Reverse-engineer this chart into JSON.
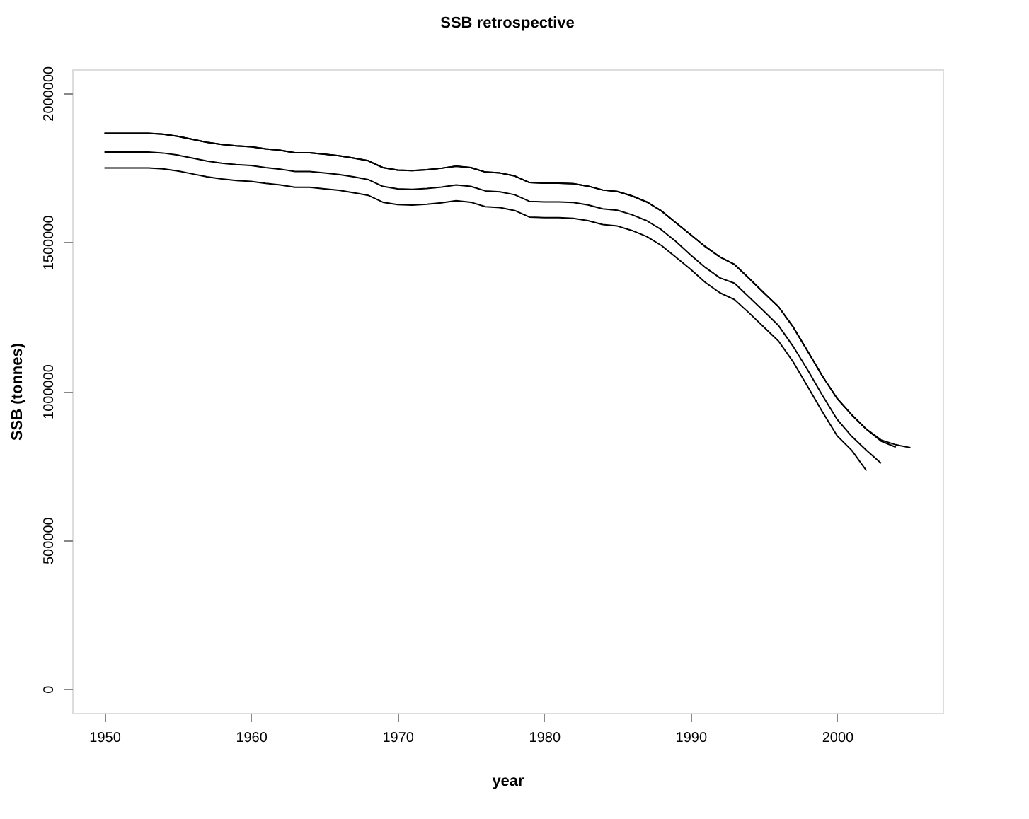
{
  "chart_data": {
    "type": "line",
    "title": "SSB retrospective",
    "xlabel": "year",
    "ylabel": "SSB (tonnes)",
    "xlim": [
      1947.8,
      2007.2
    ],
    "ylim": [
      -80000,
      2080000
    ],
    "xticks": [
      1950,
      1960,
      1970,
      1980,
      1990,
      2000
    ],
    "yticks": [
      0,
      500000,
      1000000,
      1500000,
      2000000
    ],
    "grid": false,
    "legend": false,
    "marker": "none",
    "line_style": "solid",
    "series": [
      {
        "color": "#000000",
        "x": [
          1950,
          1951,
          1952,
          1953,
          1954,
          1955,
          1956,
          1957,
          1958,
          1959,
          1960,
          1961,
          1962,
          1963,
          1964,
          1965,
          1966,
          1967,
          1968,
          1969,
          1970,
          1971,
          1972,
          1973,
          1974,
          1975,
          1976,
          1977,
          1978,
          1979,
          1980,
          1981,
          1982,
          1983,
          1984,
          1985,
          1986,
          1987,
          1988,
          1989,
          1990,
          1991,
          1992,
          1993,
          1994,
          1995,
          1996,
          1997,
          1998,
          1999,
          2000,
          2001,
          2002,
          2003,
          2004,
          2005
        ],
        "values": [
          1865000,
          1865000,
          1865000,
          1865000,
          1862000,
          1855000,
          1845000,
          1835000,
          1828000,
          1823000,
          1820000,
          1813000,
          1808000,
          1800000,
          1800000,
          1795000,
          1790000,
          1782000,
          1773000,
          1750000,
          1742000,
          1740000,
          1743000,
          1748000,
          1755000,
          1750000,
          1735000,
          1732000,
          1722000,
          1700000,
          1698000,
          1698000,
          1696000,
          1688000,
          1675000,
          1670000,
          1655000,
          1635000,
          1605000,
          1565000,
          1525000,
          1485000,
          1450000,
          1425000,
          1378000,
          1330000,
          1283000,
          1215000,
          1133000,
          1050000,
          975000,
          920000,
          872000,
          836000,
          820000,
          810000
        ]
      },
      {
        "color": "#000000",
        "x": [
          1950,
          1951,
          1952,
          1953,
          1954,
          1955,
          1956,
          1957,
          1958,
          1959,
          1960,
          1961,
          1962,
          1963,
          1964,
          1965,
          1966,
          1967,
          1968,
          1969,
          1970,
          1971,
          1972,
          1973,
          1974,
          1975,
          1976,
          1977,
          1978,
          1979,
          1980,
          1981,
          1982,
          1983,
          1984,
          1985,
          1986,
          1987,
          1988,
          1989,
          1990,
          1991,
          1992,
          1993,
          1994,
          1995,
          1996,
          1997,
          1998,
          1999,
          2000,
          2001,
          2002,
          2003,
          2004
        ],
        "values": [
          1865000,
          1865000,
          1865000,
          1865000,
          1862000,
          1855000,
          1845000,
          1835000,
          1828000,
          1823000,
          1820000,
          1813000,
          1808000,
          1800000,
          1800000,
          1795000,
          1790000,
          1782000,
          1773000,
          1750000,
          1742000,
          1740000,
          1743000,
          1748000,
          1755000,
          1750000,
          1735000,
          1732000,
          1722000,
          1700000,
          1698000,
          1698000,
          1696000,
          1688000,
          1675000,
          1670000,
          1655000,
          1635000,
          1605000,
          1565000,
          1525000,
          1485000,
          1450000,
          1425000,
          1378000,
          1330000,
          1283000,
          1215000,
          1133000,
          1050000,
          975000,
          920000,
          872000,
          832000,
          812000
        ]
      },
      {
        "color": "#000000",
        "x": [
          1950,
          1951,
          1952,
          1953,
          1954,
          1955,
          1956,
          1957,
          1958,
          1959,
          1960,
          1961,
          1962,
          1963,
          1964,
          1965,
          1966,
          1967,
          1968,
          1969,
          1970,
          1971,
          1972,
          1973,
          1974,
          1975,
          1976,
          1977,
          1978,
          1979,
          1980,
          1981,
          1982,
          1983,
          1984,
          1985,
          1986,
          1987,
          1988,
          1989,
          1990,
          1991,
          1992,
          1993,
          1994,
          1995,
          1996,
          1997,
          1998,
          1999,
          2000,
          2001,
          2002,
          2003
        ],
        "values": [
          1802000,
          1802000,
          1802000,
          1802000,
          1799000,
          1792000,
          1782000,
          1772000,
          1765000,
          1760000,
          1757000,
          1750000,
          1745000,
          1737000,
          1737000,
          1732000,
          1727000,
          1719000,
          1710000,
          1687000,
          1679000,
          1677000,
          1680000,
          1685000,
          1692000,
          1687000,
          1672000,
          1669000,
          1659000,
          1637000,
          1635000,
          1635000,
          1633000,
          1625000,
          1612000,
          1607000,
          1592000,
          1572000,
          1542000,
          1502000,
          1457000,
          1415000,
          1380000,
          1362000,
          1315000,
          1268000,
          1220000,
          1150000,
          1070000,
          985000,
          905000,
          848000,
          801000,
          758000
        ]
      },
      {
        "color": "#000000",
        "x": [
          1950,
          1951,
          1952,
          1953,
          1954,
          1955,
          1956,
          1957,
          1958,
          1959,
          1960,
          1961,
          1962,
          1963,
          1964,
          1965,
          1966,
          1967,
          1968,
          1969,
          1970,
          1971,
          1972,
          1973,
          1974,
          1975,
          1976,
          1977,
          1978,
          1979,
          1980,
          1981,
          1982,
          1983,
          1984,
          1985,
          1986,
          1987,
          1988,
          1989,
          1990,
          1991,
          1992,
          1993,
          1994,
          1995,
          1996,
          1997,
          1998,
          1999,
          2000,
          2001,
          2002
        ],
        "values": [
          1749000,
          1749000,
          1749000,
          1749000,
          1746000,
          1739000,
          1729000,
          1719000,
          1712000,
          1707000,
          1704000,
          1697000,
          1692000,
          1684000,
          1684000,
          1679000,
          1674000,
          1666000,
          1657000,
          1634000,
          1626000,
          1624000,
          1627000,
          1632000,
          1639000,
          1634000,
          1619000,
          1616000,
          1606000,
          1584000,
          1582000,
          1582000,
          1580000,
          1572000,
          1559000,
          1554000,
          1539000,
          1519000,
          1489000,
          1449000,
          1409000,
          1365000,
          1330000,
          1307000,
          1262000,
          1215000,
          1168000,
          1098000,
          1014000,
          930000,
          850000,
          801000,
          733000
        ]
      }
    ]
  }
}
